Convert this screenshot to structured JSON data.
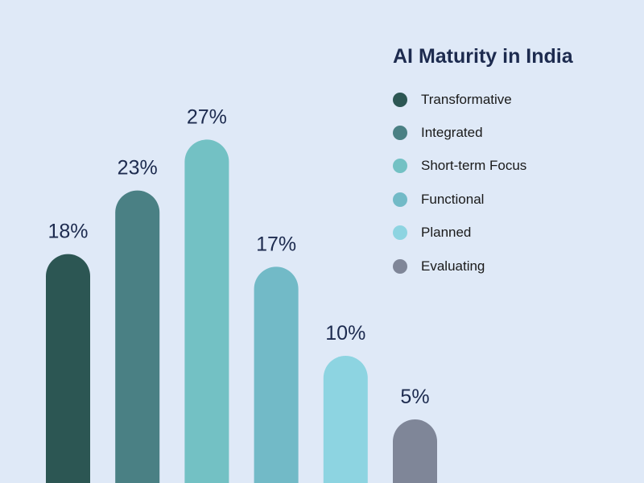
{
  "chart_data": {
    "type": "bar",
    "title": "AI Maturity in India",
    "categories": [
      "Transformative",
      "Integrated",
      "Short-term Focus",
      "Functional",
      "Planned",
      "Evaluating"
    ],
    "values": [
      18,
      23,
      27,
      17,
      10,
      5
    ],
    "data_labels": [
      "18%",
      "23%",
      "27%",
      "17%",
      "10%",
      "5%"
    ],
    "colors": [
      "#2c5653",
      "#4a8084",
      "#73c1c4",
      "#72bac7",
      "#8dd4e1",
      "#7f8698"
    ],
    "unit": "%",
    "legend_position": "top-right",
    "grid": false,
    "axes_visible": false
  }
}
